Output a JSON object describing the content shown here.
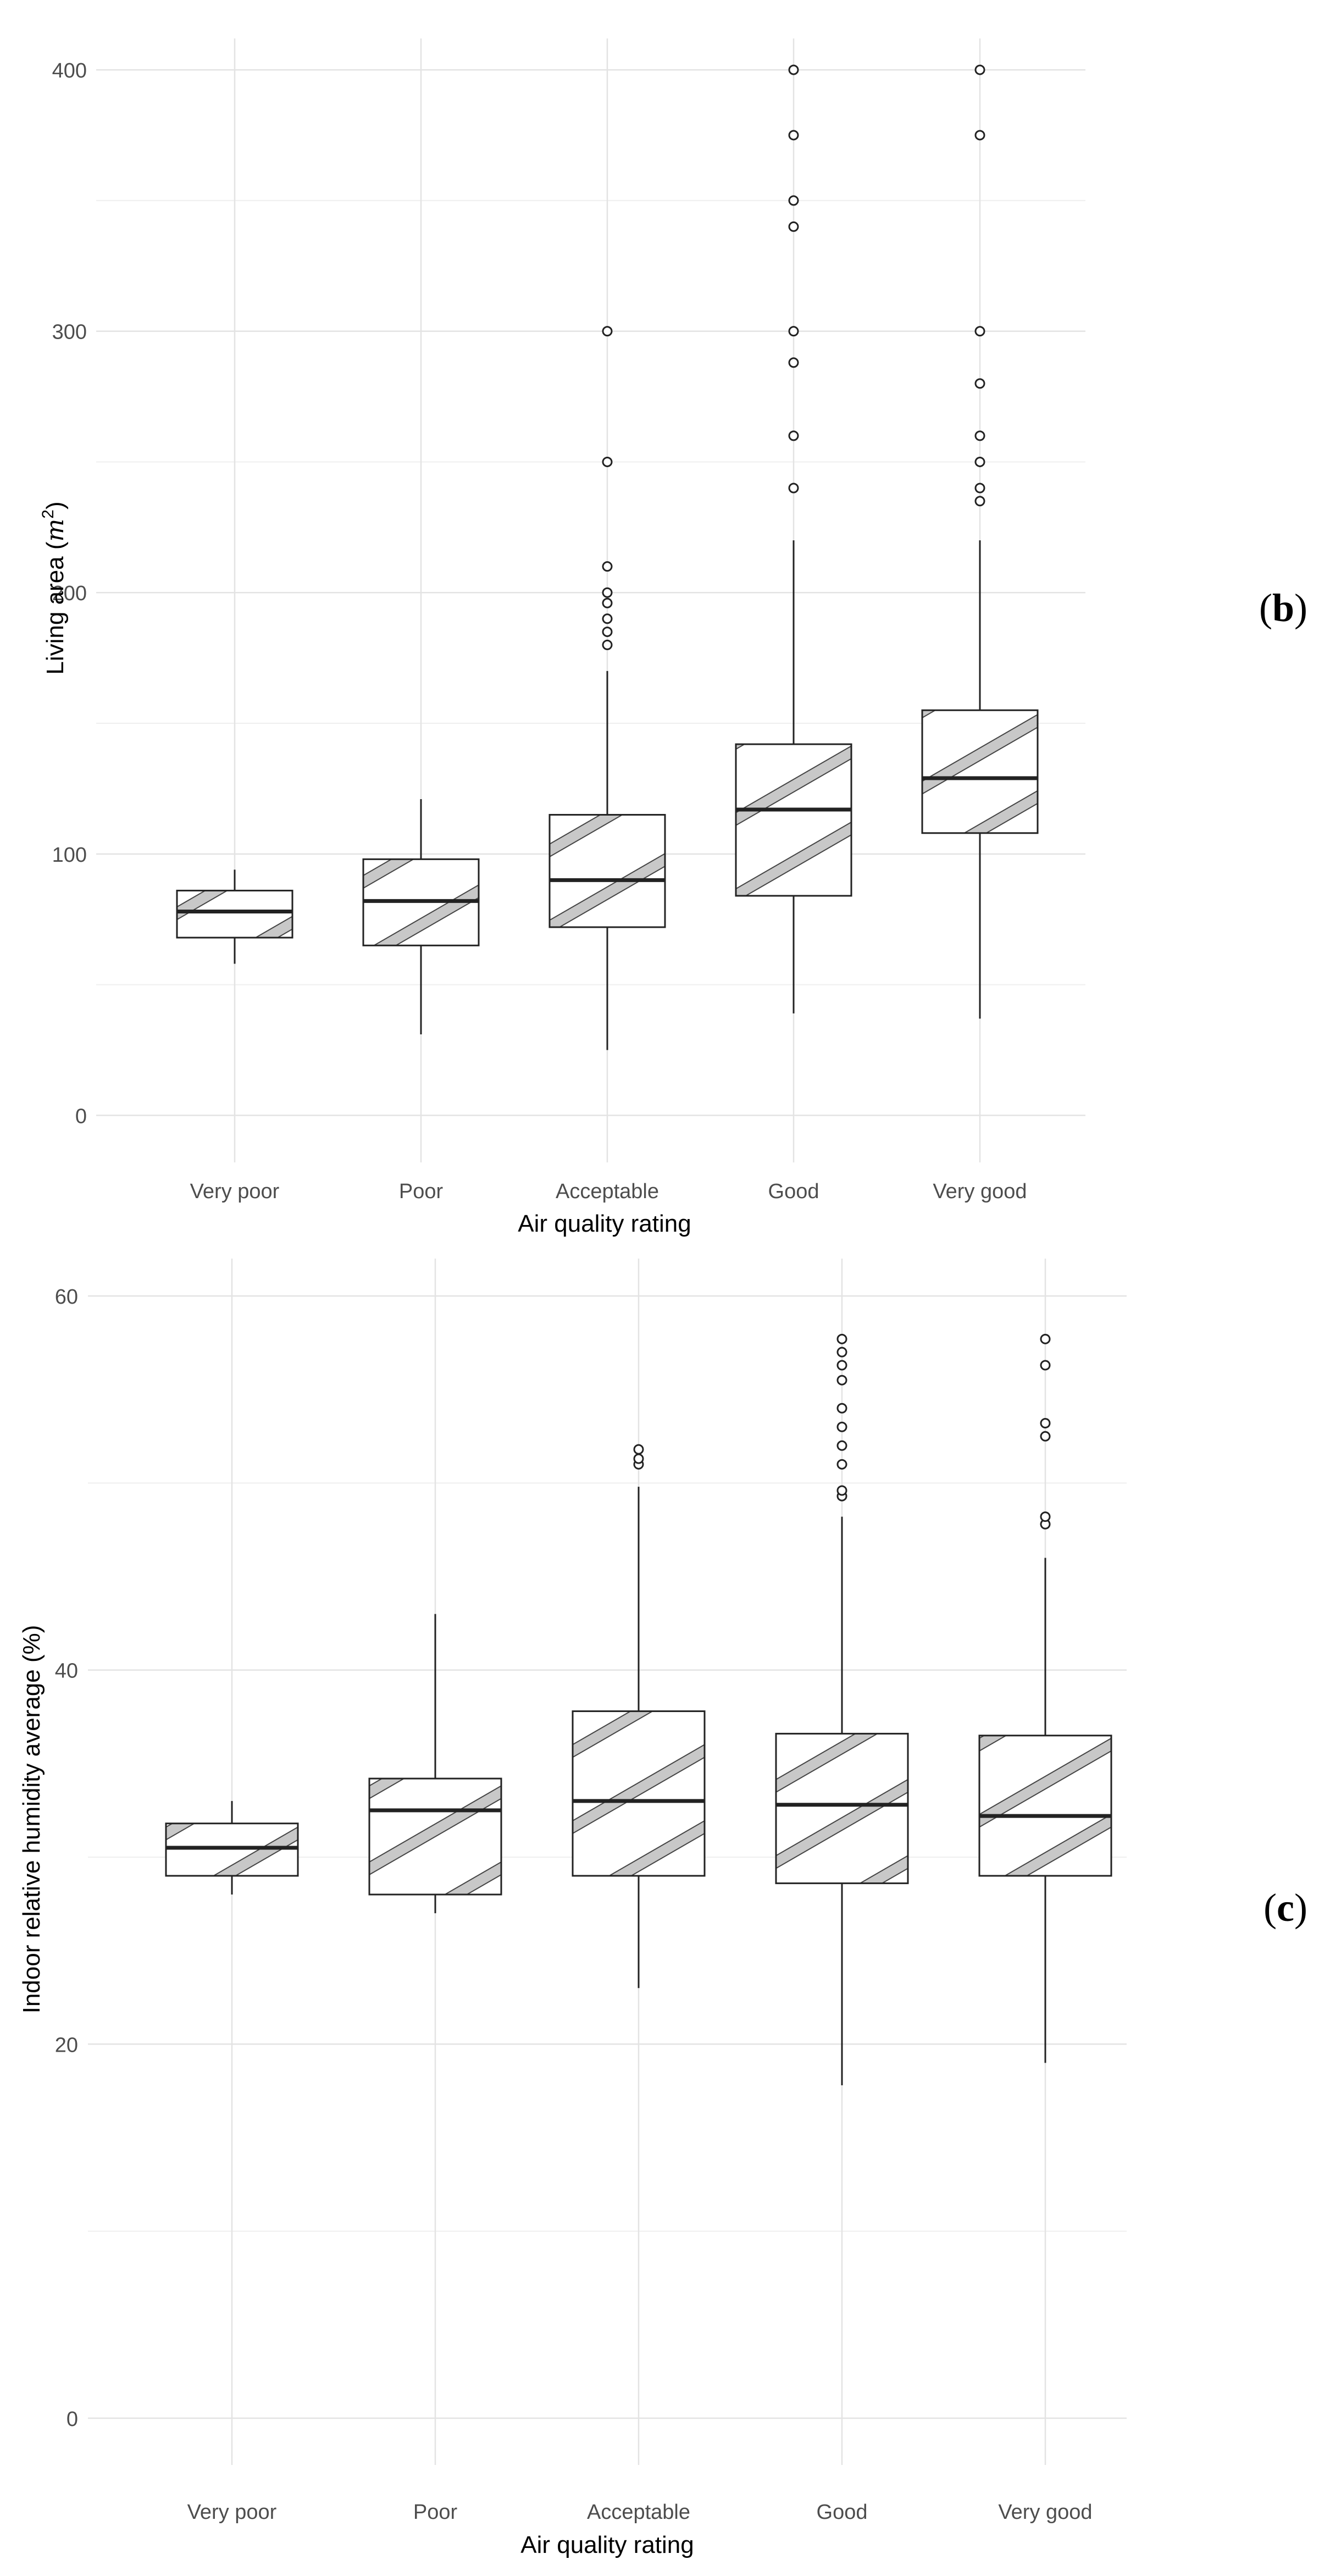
{
  "chart_data": [
    {
      "type": "box",
      "panel_label": "b",
      "categories": [
        "Very poor",
        "Poor",
        "Acceptable",
        "Good",
        "Very good"
      ],
      "xlabel": "Air quality rating",
      "ylabel_prefix": "Living area (",
      "ylabel_unit": "m",
      "ylabel_exp": "2",
      "ylabel_suffix": ")",
      "ylim": [
        -18,
        412
      ],
      "yticks": [
        0,
        100,
        200,
        300,
        400
      ],
      "grid": true,
      "boxes": [
        {
          "category": "Very poor",
          "whisker_low": 58,
          "q1": 68,
          "median": 78,
          "q3": 86,
          "whisker_high": 94,
          "outliers": []
        },
        {
          "category": "Poor",
          "whisker_low": 31,
          "q1": 65,
          "median": 82,
          "q3": 98,
          "whisker_high": 121,
          "outliers": []
        },
        {
          "category": "Acceptable",
          "whisker_low": 25,
          "q1": 72,
          "median": 90,
          "q3": 115,
          "whisker_high": 170,
          "outliers": [
            180,
            185,
            190,
            196,
            200,
            210,
            250,
            300
          ]
        },
        {
          "category": "Good",
          "whisker_low": 39,
          "q1": 84,
          "median": 117,
          "q3": 142,
          "whisker_high": 220,
          "outliers": [
            240,
            260,
            288,
            300,
            340,
            350,
            375,
            400
          ]
        },
        {
          "category": "Very good",
          "whisker_low": 37,
          "q1": 108,
          "median": 129,
          "q3": 155,
          "whisker_high": 220,
          "outliers": [
            235,
            240,
            250,
            260,
            280,
            300,
            375,
            400
          ]
        }
      ]
    },
    {
      "type": "box",
      "panel_label": "c",
      "categories": [
        "Very poor",
        "Poor",
        "Acceptable",
        "Good",
        "Very good"
      ],
      "xlabel": "Air quality rating",
      "ylabel": "Indoor relative humidity average (%)",
      "ylim": [
        -2.5,
        62
      ],
      "yticks": [
        0,
        20,
        40,
        60
      ],
      "grid": true,
      "boxes": [
        {
          "category": "Very poor",
          "whisker_low": 28,
          "q1": 29,
          "median": 30.5,
          "q3": 31.8,
          "whisker_high": 33,
          "outliers": []
        },
        {
          "category": "Poor",
          "whisker_low": 27,
          "q1": 28,
          "median": 32.5,
          "q3": 34.2,
          "whisker_high": 43,
          "outliers": []
        },
        {
          "category": "Acceptable",
          "whisker_low": 23,
          "q1": 29,
          "median": 33,
          "q3": 37.8,
          "whisker_high": 49.8,
          "outliers": [
            51,
            51.3,
            51.8
          ]
        },
        {
          "category": "Good",
          "whisker_low": 17.8,
          "q1": 28.6,
          "median": 32.8,
          "q3": 36.6,
          "whisker_high": 48.2,
          "outliers": [
            49.3,
            49.6,
            51,
            52,
            53,
            54,
            55.5,
            56.3,
            57,
            57.7
          ]
        },
        {
          "category": "Very good",
          "whisker_low": 19,
          "q1": 29,
          "median": 32.2,
          "q3": 36.5,
          "whisker_high": 46,
          "outliers": [
            47.8,
            48.2,
            52.5,
            53.2,
            56.3,
            57.7
          ]
        }
      ]
    }
  ],
  "panel_labels": [
    "b",
    "c"
  ]
}
